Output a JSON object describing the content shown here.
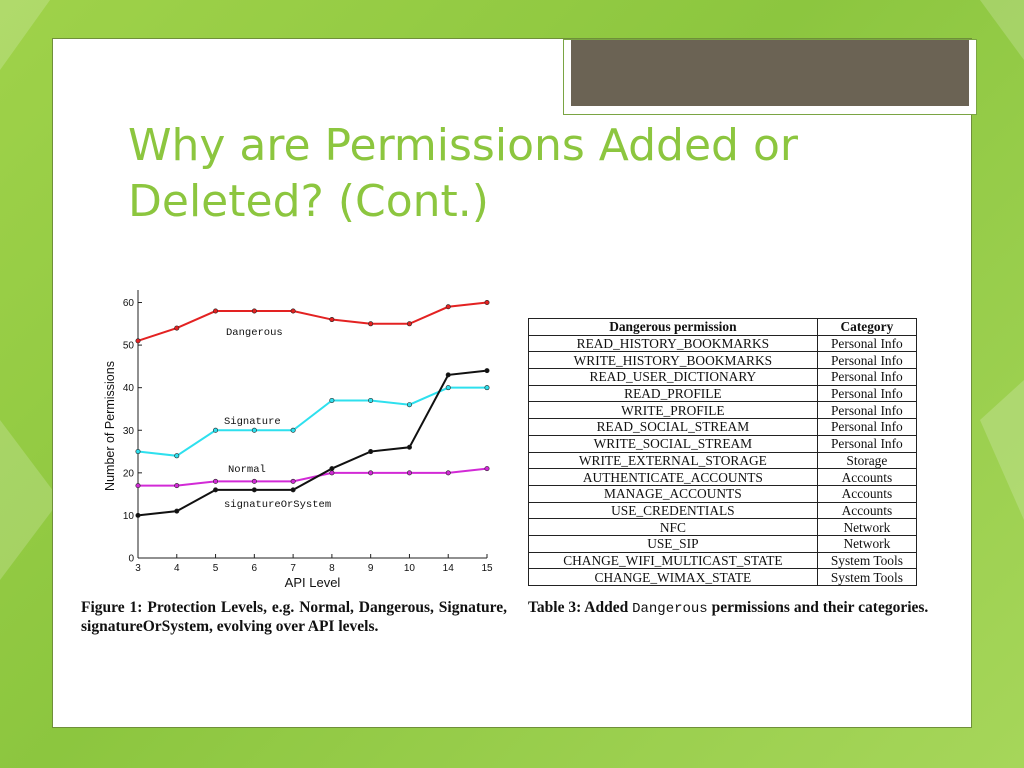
{
  "slide": {
    "title": "Why are Permissions Added or Deleted? (Cont.)"
  },
  "chart_data": {
    "type": "line",
    "xlabel": "API Level",
    "ylabel": "Number of Permissions",
    "categories": [
      "3",
      "4",
      "5",
      "6",
      "7",
      "8",
      "9",
      "10",
      "14",
      "15"
    ],
    "yticks": [
      0,
      10,
      20,
      30,
      40,
      50,
      60
    ],
    "ylim": [
      0,
      62
    ],
    "grid": false,
    "series": [
      {
        "name": "Dangerous",
        "color": "#e32222",
        "values": [
          51,
          54,
          58,
          58,
          58,
          56,
          55,
          55,
          59,
          60
        ]
      },
      {
        "name": "Signature",
        "color": "#2ee0ee",
        "values": [
          25,
          24,
          30,
          30,
          30,
          37,
          37,
          36,
          40,
          40
        ]
      },
      {
        "name": "Normal",
        "color": "#d22ad6",
        "values": [
          17,
          17,
          18,
          18,
          18,
          20,
          20,
          20,
          20,
          21
        ]
      },
      {
        "name": "signatureOrSystem",
        "color": "#111111",
        "values": [
          10,
          11,
          16,
          16,
          16,
          21,
          25,
          26,
          43,
          44
        ]
      }
    ]
  },
  "figure_caption": "Figure 1: Protection Levels, e.g. Normal, Dangerous, Signature, signatureOrSystem, evolving over API levels.",
  "table": {
    "headers": [
      "Dangerous permission",
      "Category"
    ],
    "rows": [
      [
        "READ_HISTORY_BOOKMARKS",
        "Personal Info"
      ],
      [
        "WRITE_HISTORY_BOOKMARKS",
        "Personal Info"
      ],
      [
        "READ_USER_DICTIONARY",
        "Personal Info"
      ],
      [
        "READ_PROFILE",
        "Personal Info"
      ],
      [
        "WRITE_PROFILE",
        "Personal Info"
      ],
      [
        "READ_SOCIAL_STREAM",
        "Personal Info"
      ],
      [
        "WRITE_SOCIAL_STREAM",
        "Personal Info"
      ],
      [
        "WRITE_EXTERNAL_STORAGE",
        "Storage"
      ],
      [
        "AUTHENTICATE_ACCOUNTS",
        "Accounts"
      ],
      [
        "MANAGE_ACCOUNTS",
        "Accounts"
      ],
      [
        "USE_CREDENTIALS",
        "Accounts"
      ],
      [
        "NFC",
        "Network"
      ],
      [
        "USE_SIP",
        "Network"
      ],
      [
        "CHANGE_WIFI_MULTICAST_STATE",
        "System Tools"
      ],
      [
        "CHANGE_WIMAX_STATE",
        "System Tools"
      ]
    ],
    "caption_prefix": "Table 3: Added",
    "caption_mono": "Dangerous",
    "caption_suffix": "permissions and their categories."
  }
}
